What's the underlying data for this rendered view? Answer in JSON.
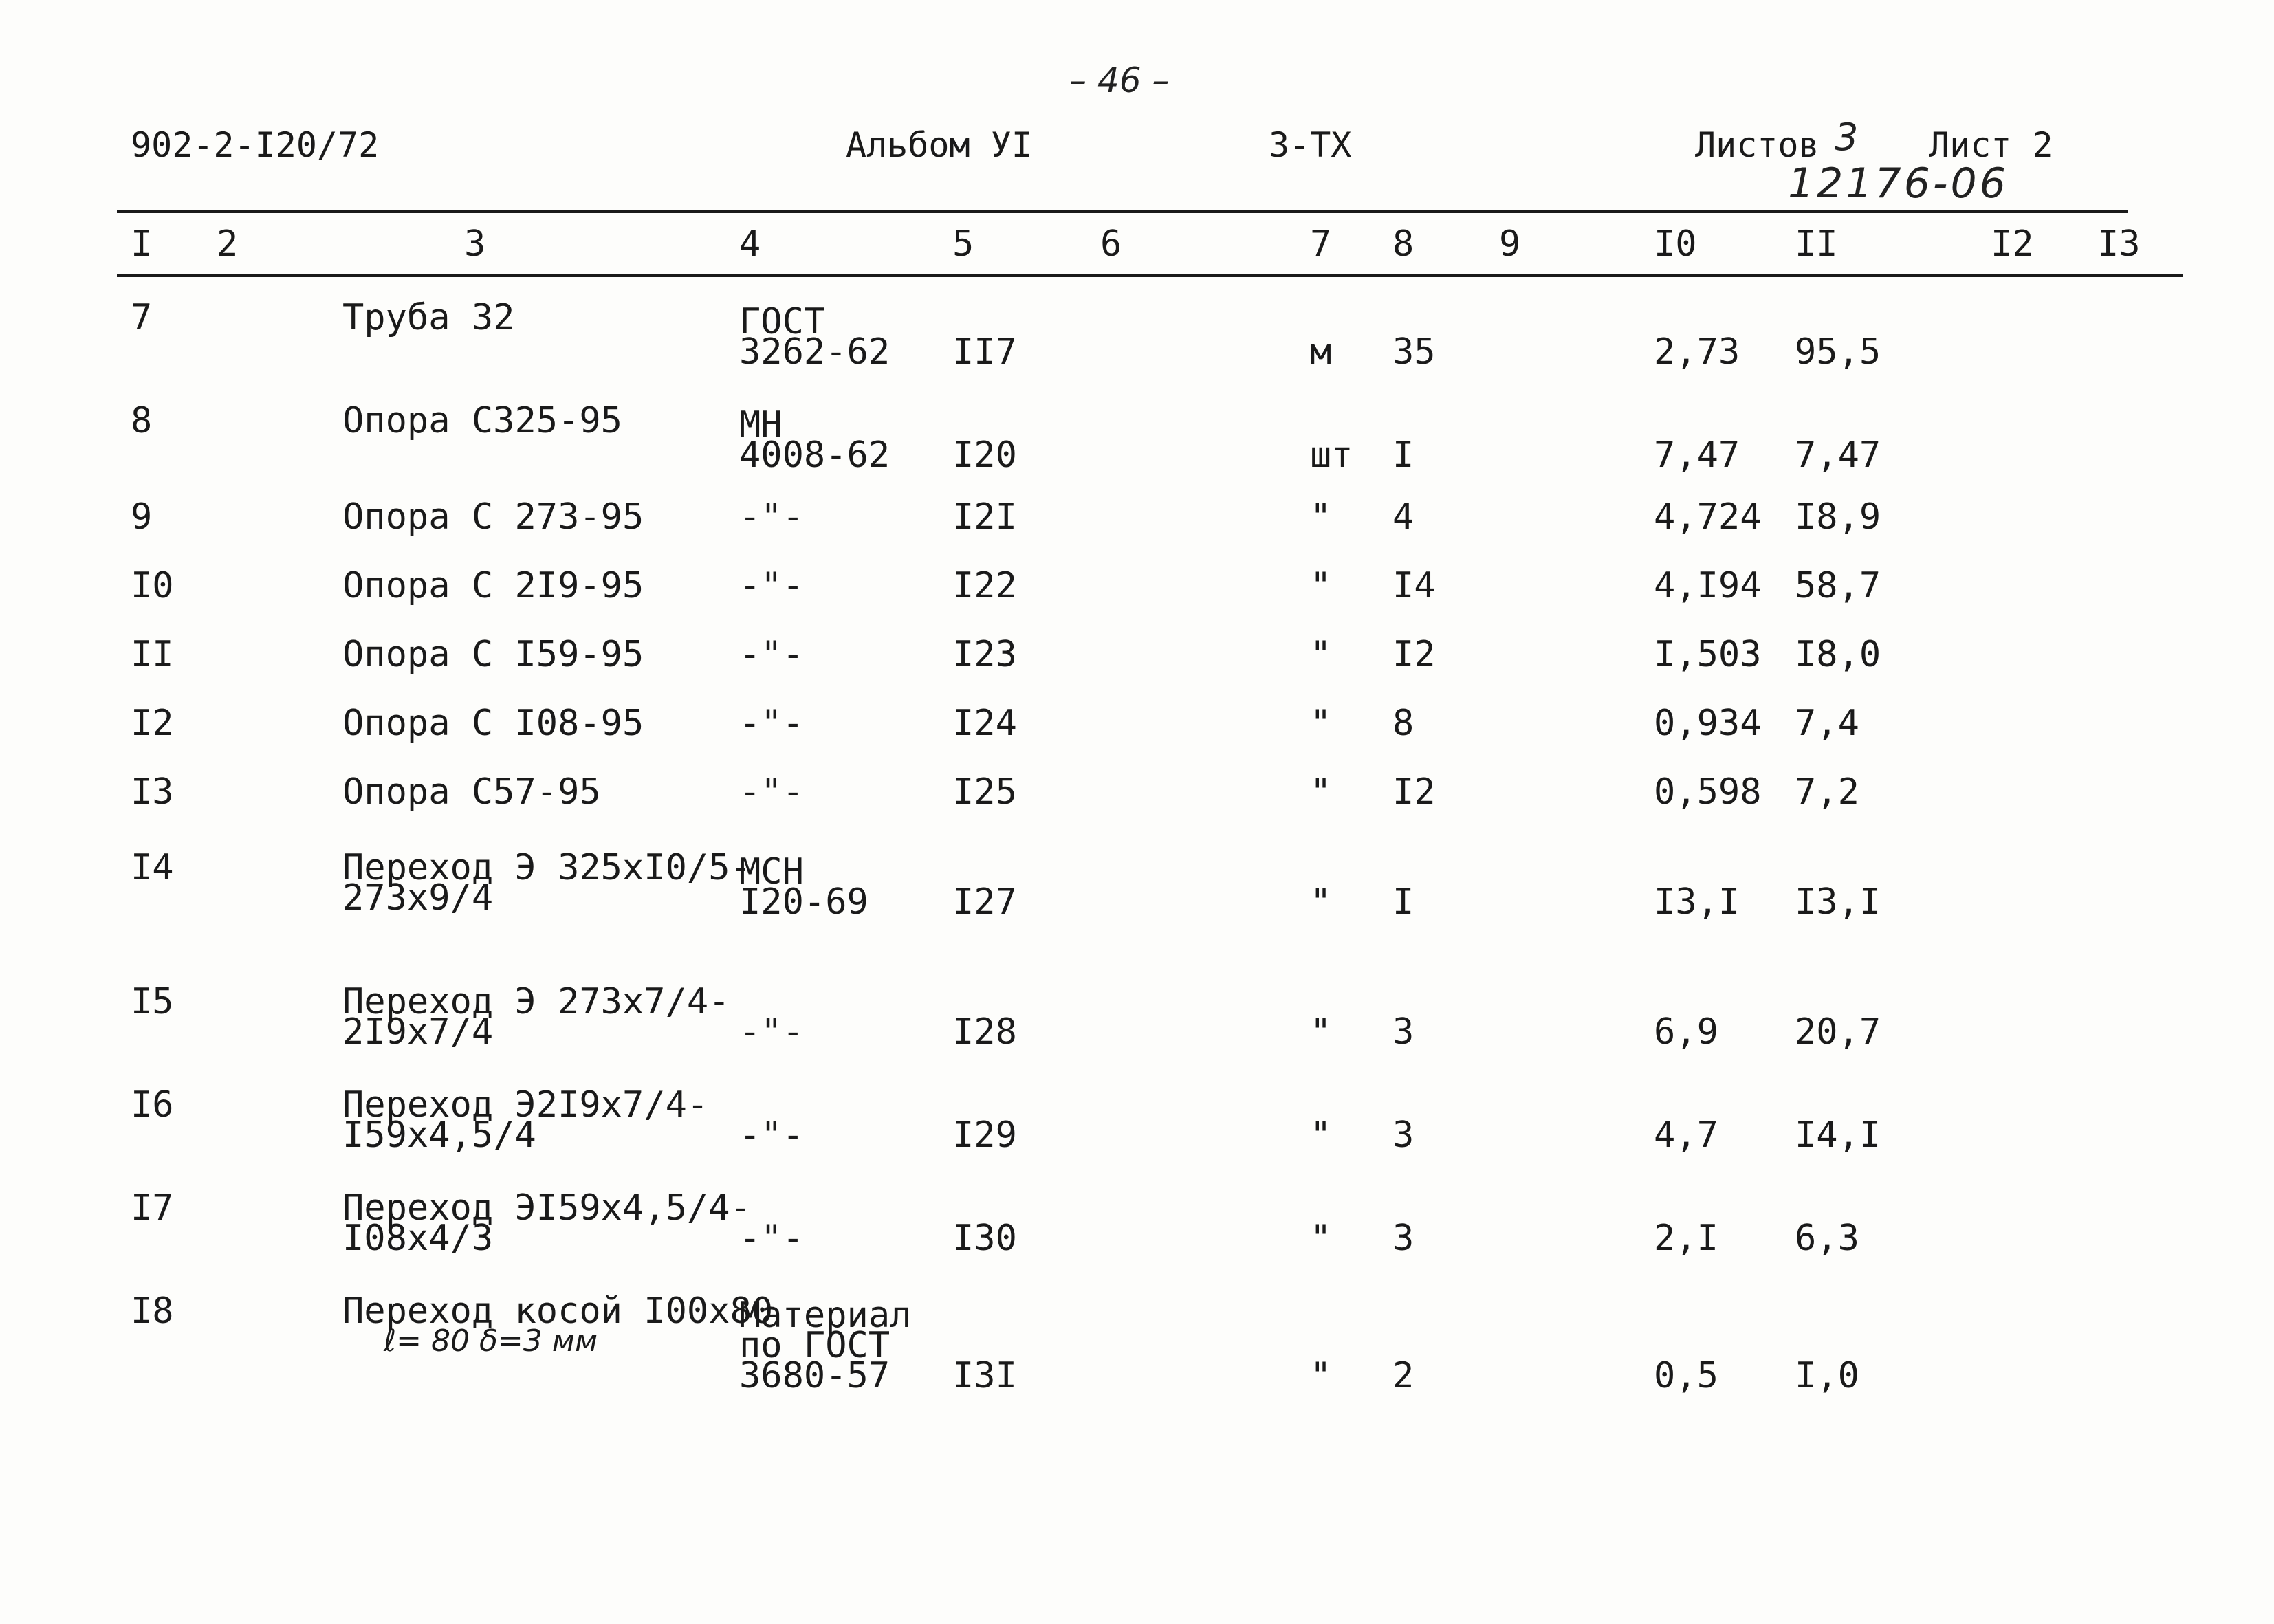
{
  "page_number": "– 46 –",
  "header": {
    "doc_code": "902-2-I20/72",
    "album": "Альбом УI",
    "section": "З-ТХ",
    "sheets_label": "Листов",
    "sheets_count": "3",
    "sheet_label": "Лист 2",
    "reg_number": "12176-06"
  },
  "column_headers": [
    "I",
    "2",
    "3",
    "4",
    "5",
    "6",
    "7",
    "8",
    "9",
    "I0",
    "II",
    "I2",
    "I3"
  ],
  "rows": [
    {
      "pos": "7",
      "name": [
        "Труба 32"
      ],
      "standard": [
        "ГОСТ",
        "З262-62"
      ],
      "code": "II7",
      "unit": "м",
      "qty": "35",
      "unit_mass": "2,73",
      "total_mass": "95,5"
    },
    {
      "pos": "8",
      "name": [
        "Опора С325-95"
      ],
      "standard": [
        "МН",
        "4008-62"
      ],
      "code": "I20",
      "unit": "шт",
      "qty": "I",
      "unit_mass": "7,47",
      "total_mass": "7,47"
    },
    {
      "pos": "9",
      "name": [
        "Опора  С 273-95"
      ],
      "standard": [
        "-\"-"
      ],
      "code": "I2I",
      "unit": "\"",
      "qty": "4",
      "unit_mass": "4,724",
      "total_mass": "I8,9"
    },
    {
      "pos": "I0",
      "name": [
        "Опора С 2I9-95"
      ],
      "standard": [
        "-\"-"
      ],
      "code": "I22",
      "unit": "\"",
      "qty": "I4",
      "unit_mass": "4,I94",
      "total_mass": "58,7"
    },
    {
      "pos": "II",
      "name": [
        "Опора С I59-95"
      ],
      "standard": [
        "-\"-"
      ],
      "code": "I23",
      "unit": "\"",
      "qty": "I2",
      "unit_mass": "I,503",
      "total_mass": "I8,0"
    },
    {
      "pos": "I2",
      "name": [
        "Опора С I08-95"
      ],
      "standard": [
        "-\"-"
      ],
      "code": "I24",
      "unit": "\"",
      "qty": "8",
      "unit_mass": "0,934",
      "total_mass": "7,4"
    },
    {
      "pos": "I3",
      "name": [
        "Опора С57-95"
      ],
      "standard": [
        "-\"-"
      ],
      "code": "I25",
      "unit": "\"",
      "qty": "I2",
      "unit_mass": "0,598",
      "total_mass": "7,2"
    },
    {
      "pos": "I4",
      "name": [
        "Переход Э 325хI0/5-",
        "273х9/4"
      ],
      "standard": [
        "МСН",
        "I20-69"
      ],
      "code": "I27",
      "unit": "\"",
      "qty": "I",
      "unit_mass": "I3,I",
      "total_mass": "I3,I"
    },
    {
      "pos": "I5",
      "name": [
        "Переход Э 273х7/4-",
        "2I9х7/4"
      ],
      "standard": [
        "-\"-"
      ],
      "code": "I28",
      "unit": "\"",
      "qty": "3",
      "unit_mass": "6,9",
      "total_mass": "20,7"
    },
    {
      "pos": "I6",
      "name": [
        "Переход Э2I9х7/4-",
        "I59х4,5/4"
      ],
      "standard": [
        "-\"-"
      ],
      "code": "I29",
      "unit": "\"",
      "qty": "3",
      "unit_mass": "4,7",
      "total_mass": "I4,I"
    },
    {
      "pos": "I7",
      "name": [
        "Переход ЭI59х4,5/4-",
        "I08х4/3"
      ],
      "standard": [
        "-\"-"
      ],
      "code": "I30",
      "unit": "\"",
      "qty": "3",
      "unit_mass": "2,I",
      "total_mass": "6,3"
    },
    {
      "pos": "I8",
      "name": [
        "Переход косой I00х80",
        "ℓ= 80 δ=3 мм"
      ],
      "standard": [
        "Материал",
        "по ГОСТ",
        "3680-57"
      ],
      "code": "I3I",
      "unit": "\"",
      "qty": "2",
      "unit_mass": "0,5",
      "total_mass": "I,0"
    }
  ]
}
